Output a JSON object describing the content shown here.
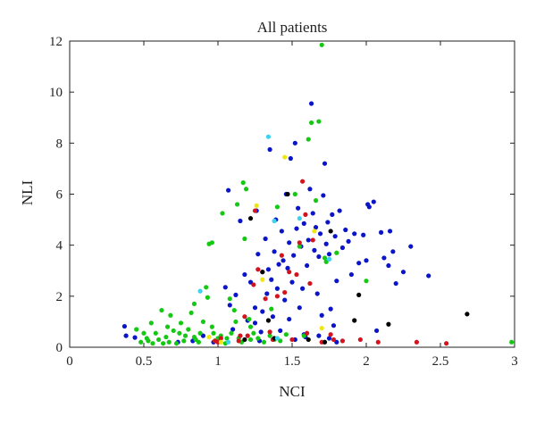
{
  "chart_data": {
    "type": "scatter",
    "title": "All patients",
    "xlabel": "NCI",
    "ylabel": "NLI",
    "xlim": [
      0,
      3
    ],
    "ylim": [
      0,
      12
    ],
    "x_ticks": [
      "0",
      "0.5",
      "1",
      "1.5",
      "2",
      "2.5",
      "3"
    ],
    "y_ticks": [
      "0",
      "2",
      "4",
      "6",
      "8",
      "10",
      "12"
    ],
    "grid": false,
    "legend": "none",
    "series": [
      {
        "color": "#0a14c8",
        "points": [
          [
            0.37,
            0.82
          ],
          [
            0.38,
            0.45
          ],
          [
            0.44,
            0.38
          ],
          [
            0.73,
            0.2
          ],
          [
            0.83,
            0.25
          ],
          [
            0.9,
            0.45
          ],
          [
            0.97,
            0.2
          ],
          [
            1.05,
            2.35
          ],
          [
            1.07,
            6.15
          ],
          [
            1.08,
            1.65
          ],
          [
            1.1,
            0.7
          ],
          [
            1.12,
            2.05
          ],
          [
            1.15,
            4.95
          ],
          [
            1.18,
            2.85
          ],
          [
            1.2,
            1.05
          ],
          [
            1.22,
            2.55
          ],
          [
            1.25,
            0.95
          ],
          [
            1.25,
            1.55
          ],
          [
            1.26,
            5.35
          ],
          [
            1.27,
            3.65
          ],
          [
            1.29,
            0.6
          ],
          [
            1.3,
            1.4
          ],
          [
            1.32,
            4.25
          ],
          [
            1.33,
            2.1
          ],
          [
            1.34,
            3.05
          ],
          [
            1.35,
            7.75
          ],
          [
            1.36,
            2.65
          ],
          [
            1.37,
            1.2
          ],
          [
            1.38,
            3.75
          ],
          [
            1.39,
            5.0
          ],
          [
            1.4,
            2.3
          ],
          [
            1.41,
            3.25
          ],
          [
            1.42,
            0.65
          ],
          [
            1.43,
            4.55
          ],
          [
            1.44,
            3.4
          ],
          [
            1.45,
            1.85
          ],
          [
            1.46,
            6.0
          ],
          [
            1.47,
            3.1
          ],
          [
            1.48,
            4.1
          ],
          [
            1.49,
            7.4
          ],
          [
            1.5,
            2.55
          ],
          [
            1.51,
            3.6
          ],
          [
            1.52,
            8.0
          ],
          [
            1.53,
            4.65
          ],
          [
            1.54,
            5.45
          ],
          [
            1.55,
            1.55
          ],
          [
            1.56,
            3.95
          ],
          [
            1.57,
            2.3
          ],
          [
            1.58,
            4.85
          ],
          [
            1.59,
            0.4
          ],
          [
            1.6,
            3.2
          ],
          [
            1.61,
            4.2
          ],
          [
            1.62,
            6.2
          ],
          [
            1.63,
            9.55
          ],
          [
            1.64,
            5.25
          ],
          [
            1.65,
            3.8
          ],
          [
            1.66,
            4.7
          ],
          [
            1.67,
            2.1
          ],
          [
            1.68,
            3.55
          ],
          [
            1.69,
            4.45
          ],
          [
            1.7,
            1.25
          ],
          [
            1.71,
            5.95
          ],
          [
            1.72,
            7.2
          ],
          [
            1.73,
            4.05
          ],
          [
            1.74,
            4.9
          ],
          [
            1.75,
            3.65
          ],
          [
            1.76,
            1.5
          ],
          [
            1.77,
            5.2
          ],
          [
            1.78,
            0.85
          ],
          [
            1.79,
            4.35
          ],
          [
            1.8,
            2.6
          ],
          [
            1.82,
            5.35
          ],
          [
            1.84,
            3.9
          ],
          [
            1.86,
            4.6
          ],
          [
            1.88,
            4.15
          ],
          [
            1.9,
            2.85
          ],
          [
            1.92,
            4.45
          ],
          [
            1.95,
            3.3
          ],
          [
            1.98,
            4.4
          ],
          [
            2.0,
            3.4
          ],
          [
            2.01,
            5.6
          ],
          [
            2.02,
            5.5
          ],
          [
            2.05,
            5.7
          ],
          [
            2.07,
            0.65
          ],
          [
            2.1,
            4.5
          ],
          [
            2.12,
            3.5
          ],
          [
            2.15,
            3.2
          ],
          [
            2.16,
            4.55
          ],
          [
            2.18,
            3.75
          ],
          [
            2.2,
            2.5
          ],
          [
            2.25,
            2.95
          ],
          [
            2.3,
            3.95
          ],
          [
            2.42,
            2.8
          ],
          [
            1.75,
            0.35
          ],
          [
            1.28,
            0.25
          ],
          [
            1.48,
            1.1
          ],
          [
            1.52,
            0.3
          ],
          [
            1.68,
            0.45
          ],
          [
            1.8,
            0.2
          ],
          [
            1.58,
            0.5
          ]
        ]
      },
      {
        "color": "#14c814",
        "points": [
          [
            0.45,
            0.7
          ],
          [
            0.48,
            0.2
          ],
          [
            0.5,
            0.55
          ],
          [
            0.52,
            0.35
          ],
          [
            0.53,
            0.25
          ],
          [
            0.55,
            0.95
          ],
          [
            0.56,
            0.15
          ],
          [
            0.58,
            0.55
          ],
          [
            0.6,
            0.3
          ],
          [
            0.62,
            1.45
          ],
          [
            0.63,
            0.15
          ],
          [
            0.65,
            0.4
          ],
          [
            0.67,
            0.2
          ],
          [
            0.68,
            1.25
          ],
          [
            0.7,
            0.65
          ],
          [
            0.72,
            0.15
          ],
          [
            0.74,
            0.55
          ],
          [
            0.75,
            0.95
          ],
          [
            0.77,
            0.25
          ],
          [
            0.78,
            0.45
          ],
          [
            0.8,
            0.7
          ],
          [
            0.82,
            1.35
          ],
          [
            0.84,
            1.7
          ],
          [
            0.85,
            0.3
          ],
          [
            0.87,
            0.2
          ],
          [
            0.88,
            0.55
          ],
          [
            0.9,
            1.0
          ],
          [
            0.92,
            2.35
          ],
          [
            0.93,
            1.95
          ],
          [
            0.94,
            4.05
          ],
          [
            0.96,
            4.1
          ],
          [
            0.97,
            0.55
          ],
          [
            0.98,
            0.25
          ],
          [
            1.0,
            0.35
          ],
          [
            1.02,
            0.45
          ],
          [
            1.03,
            5.25
          ],
          [
            1.05,
            0.15
          ],
          [
            1.06,
            0.35
          ],
          [
            1.08,
            1.9
          ],
          [
            1.09,
            0.55
          ],
          [
            1.11,
            1.45
          ],
          [
            1.13,
            5.6
          ],
          [
            1.14,
            0.35
          ],
          [
            1.16,
            0.2
          ],
          [
            1.17,
            6.45
          ],
          [
            1.18,
            4.25
          ],
          [
            1.19,
            6.2
          ],
          [
            1.21,
            1.1
          ],
          [
            1.22,
            0.3
          ],
          [
            1.24,
            0.55
          ],
          [
            1.27,
            0.35
          ],
          [
            1.31,
            0.2
          ],
          [
            1.35,
            0.45
          ],
          [
            1.38,
            0.3
          ],
          [
            1.42,
            0.25
          ],
          [
            1.46,
            0.5
          ],
          [
            1.52,
            6.0
          ],
          [
            1.55,
            3.95
          ],
          [
            1.58,
            0.45
          ],
          [
            1.61,
            8.15
          ],
          [
            1.63,
            8.8
          ],
          [
            1.66,
            5.75
          ],
          [
            1.68,
            8.85
          ],
          [
            1.7,
            11.85
          ],
          [
            1.72,
            3.5
          ],
          [
            1.73,
            3.35
          ],
          [
            1.8,
            3.7
          ],
          [
            2.0,
            2.6
          ],
          [
            2.98,
            0.2
          ],
          [
            1.4,
            5.5
          ],
          [
            1.22,
            0.8
          ],
          [
            0.96,
            0.8
          ],
          [
            1.36,
            1.5
          ],
          [
            1.12,
            1.0
          ],
          [
            0.84,
            0.4
          ],
          [
            0.66,
            0.8
          ]
        ]
      },
      {
        "color": "#d2141e",
        "points": [
          [
            0.98,
            0.25
          ],
          [
            1.0,
            0.2
          ],
          [
            1.02,
            0.35
          ],
          [
            1.14,
            0.25
          ],
          [
            1.18,
            1.2
          ],
          [
            1.2,
            0.45
          ],
          [
            1.24,
            2.45
          ],
          [
            1.25,
            5.35
          ],
          [
            1.27,
            3.05
          ],
          [
            1.3,
            2.95
          ],
          [
            1.32,
            1.9
          ],
          [
            1.35,
            0.6
          ],
          [
            1.37,
            0.3
          ],
          [
            1.4,
            2.0
          ],
          [
            1.43,
            3.6
          ],
          [
            1.45,
            2.15
          ],
          [
            1.48,
            2.95
          ],
          [
            1.5,
            0.3
          ],
          [
            1.53,
            2.85
          ],
          [
            1.55,
            4.1
          ],
          [
            1.57,
            6.5
          ],
          [
            1.59,
            5.2
          ],
          [
            1.6,
            0.55
          ],
          [
            1.62,
            2.5
          ],
          [
            1.64,
            4.2
          ],
          [
            1.7,
            0.2
          ],
          [
            1.76,
            0.5
          ],
          [
            1.78,
            0.3
          ],
          [
            1.84,
            0.25
          ],
          [
            1.96,
            0.3
          ],
          [
            2.08,
            0.2
          ],
          [
            2.34,
            0.2
          ],
          [
            2.54,
            0.15
          ],
          [
            1.15,
            0.45
          ]
        ]
      },
      {
        "color": "#000000",
        "points": [
          [
            1.18,
            0.3
          ],
          [
            1.22,
            5.05
          ],
          [
            1.3,
            2.95
          ],
          [
            1.34,
            1.05
          ],
          [
            1.38,
            0.35
          ],
          [
            1.47,
            6.0
          ],
          [
            1.61,
            0.3
          ],
          [
            1.72,
            0.2
          ],
          [
            1.76,
            4.55
          ],
          [
            1.92,
            1.05
          ],
          [
            1.95,
            2.05
          ],
          [
            2.15,
            0.9
          ],
          [
            2.68,
            1.3
          ]
        ]
      },
      {
        "color": "#f0e614",
        "points": [
          [
            0.94,
            0.4
          ],
          [
            1.02,
            0.2
          ],
          [
            1.26,
            5.55
          ],
          [
            1.3,
            2.65
          ],
          [
            1.45,
            7.45
          ],
          [
            1.65,
            4.55
          ],
          [
            1.7,
            0.75
          ]
        ]
      },
      {
        "color": "#3cd2f0",
        "points": [
          [
            0.88,
            2.2
          ],
          [
            1.07,
            0.2
          ],
          [
            1.34,
            8.25
          ],
          [
            1.38,
            4.95
          ],
          [
            1.4,
            0.35
          ],
          [
            1.55,
            5.05
          ],
          [
            1.75,
            3.45
          ]
        ]
      }
    ]
  }
}
